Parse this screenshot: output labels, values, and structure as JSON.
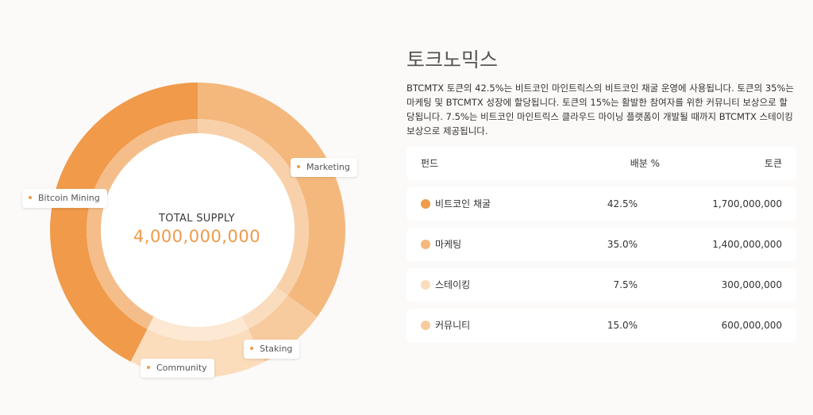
{
  "chart_data": {
    "type": "pie",
    "title": "",
    "center": {
      "title": "TOTAL SUPPLY",
      "value": "4,000,000,000"
    },
    "slices": [
      {
        "label": "Marketing",
        "percent": 35.0,
        "color": "#f4b87d"
      },
      {
        "label": "Staking",
        "percent": 7.5,
        "color": "#f7cb9d"
      },
      {
        "label": "Community",
        "percent": 15.0,
        "color": "#fbdcbb"
      },
      {
        "label": "Bitcoin Mining",
        "percent": 42.5,
        "color": "#f09a4a"
      }
    ]
  },
  "section": {
    "title": "토크노믹스",
    "description": "BTCMTX 토큰의 42.5%는 비트코인 마인트릭스의 비트코인 채굴 운영에 사용됩니다. 토큰의 35%는 마케팅 및 BTCMTX 성장에 할당됩니다. 토큰의 15%는 활발한 참여자를 위한 커뮤니티 보상으로 할당됩니다. 7.5%는 비트코인 마인트릭스 클라우드 마이닝 플랫폼이 개발될 때까지 BTCMTX 스테이킹 보상으로 제공됩니다."
  },
  "table": {
    "headers": [
      "펀드",
      "배분 %",
      "토큰"
    ],
    "rows": [
      {
        "name": "비트코인 채굴",
        "percent": "42.5%",
        "tokens": "1,700,000,000",
        "color": "#f09a4a"
      },
      {
        "name": "마케팅",
        "percent": "35.0%",
        "tokens": "1,400,000,000",
        "color": "#f4b87d"
      },
      {
        "name": "스테이킹",
        "percent": "7.5%",
        "tokens": "300,000,000",
        "color": "#fbdcbb"
      },
      {
        "name": "커뮤니티",
        "percent": "15.0%",
        "tokens": "600,000,000",
        "color": "#f7cb9d"
      }
    ]
  }
}
